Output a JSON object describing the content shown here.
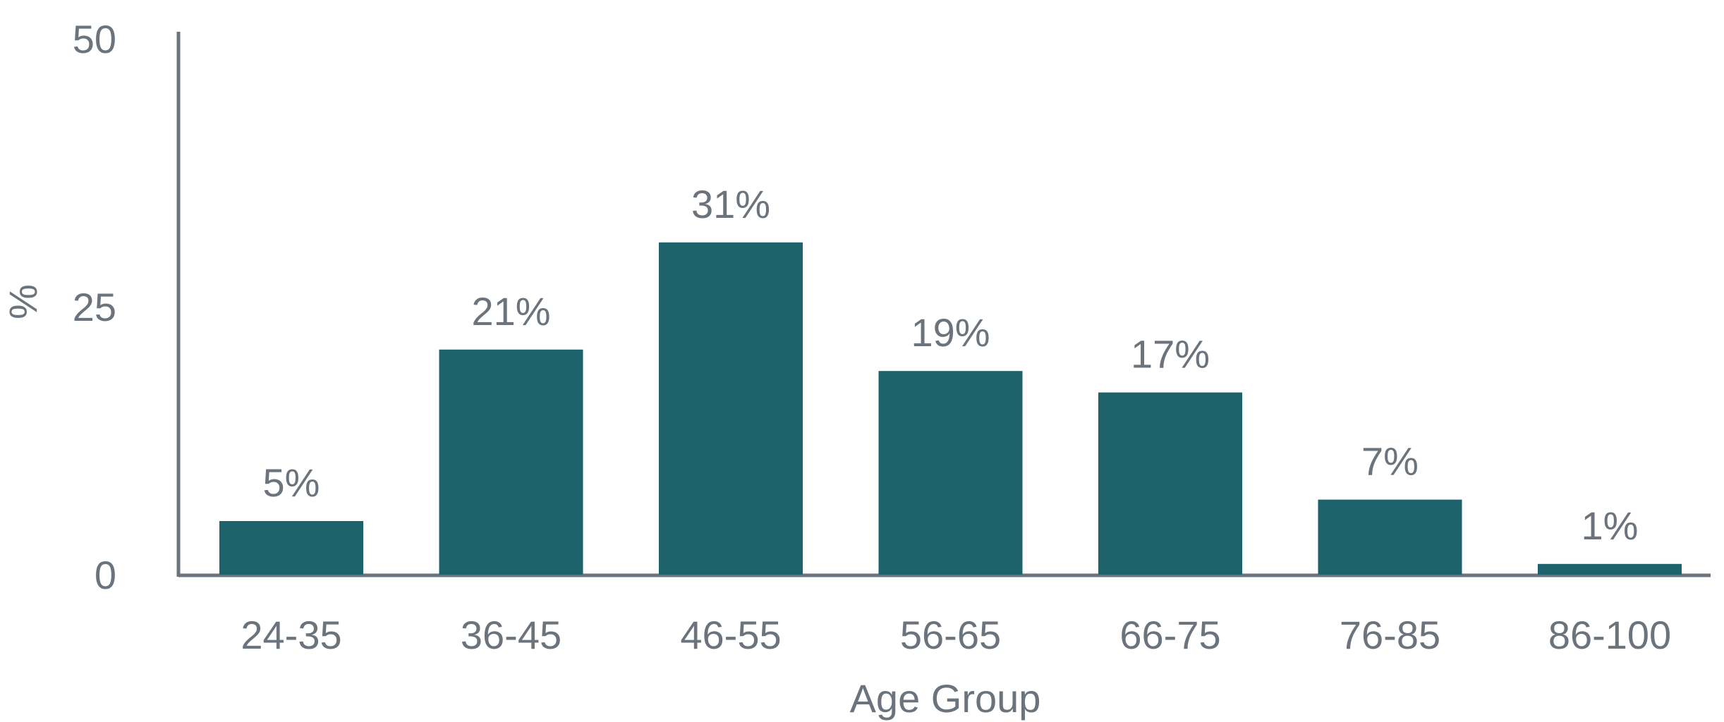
{
  "chart_data": {
    "type": "bar",
    "title": "",
    "xlabel": "Age Group",
    "ylabel": "%",
    "categories": [
      "24-35",
      "36-45",
      "46-55",
      "56-65",
      "66-75",
      "76-85",
      "86-100"
    ],
    "values": [
      5,
      21,
      31,
      19,
      17,
      7,
      1
    ],
    "data_labels": [
      "5%",
      "21%",
      "31%",
      "19%",
      "17%",
      "7%",
      "1%"
    ],
    "ylim": [
      0,
      50
    ],
    "yticks": [
      0,
      25,
      50
    ],
    "ytick_labels": [
      "0",
      "25",
      "50"
    ],
    "grid": false,
    "legend": "none",
    "colors": {
      "bar": "#1e626c",
      "text": "#6b737c",
      "axis": "#6b737c"
    }
  }
}
